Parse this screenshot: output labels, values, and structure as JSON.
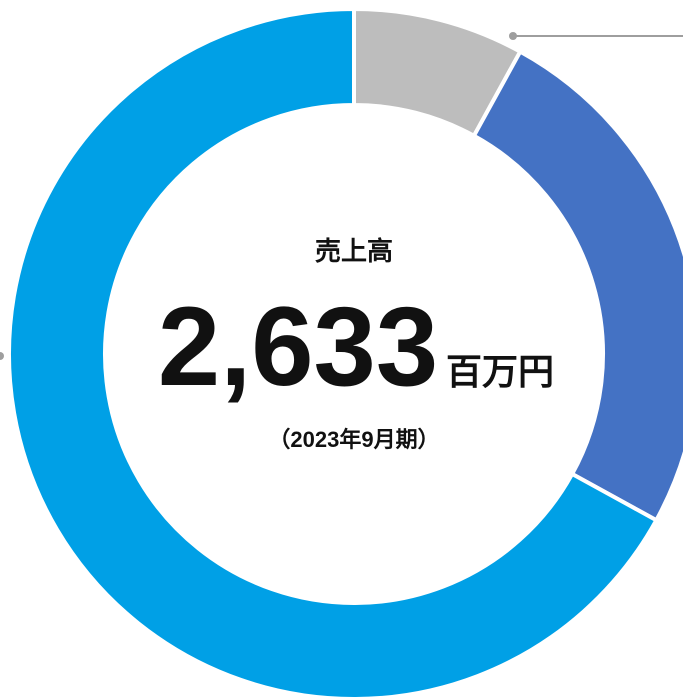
{
  "chart_data": {
    "type": "donut",
    "values": [
      8,
      25,
      67
    ],
    "colors": [
      "#bdbdbd",
      "#4472c4",
      "#00a0e6"
    ],
    "center_label": "売上高",
    "center_value": "2,633",
    "center_unit": "百万円",
    "center_note": "（2023年9月期）"
  }
}
